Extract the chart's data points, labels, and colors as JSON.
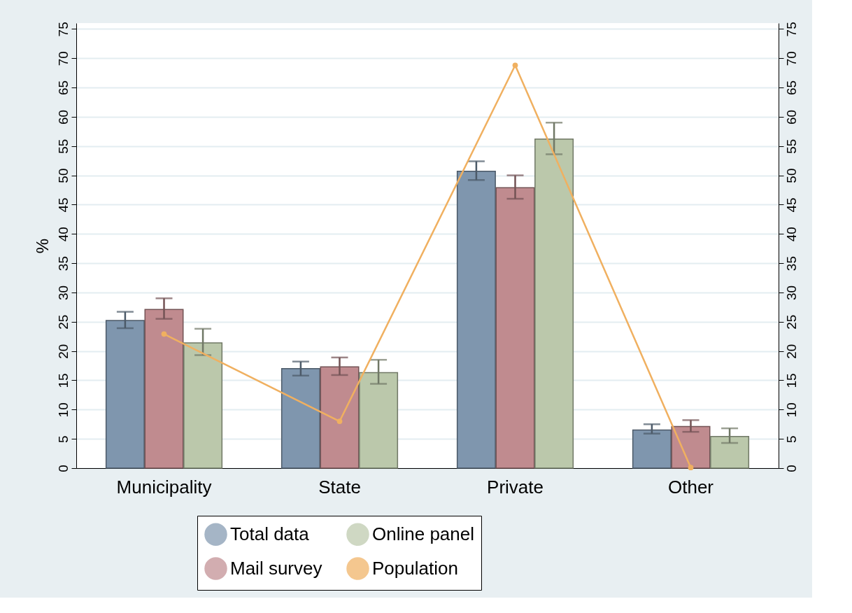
{
  "chart_data": {
    "type": "bar",
    "ylabel": "%",
    "categories": [
      "Municipality",
      "State",
      "Private",
      "Other"
    ],
    "series": [
      {
        "name": "Total data",
        "color": "#7f96ae",
        "values": [
          25.2,
          17.0,
          50.7,
          6.5
        ],
        "errors": [
          [
            23.9,
            26.7
          ],
          [
            15.8,
            18.2
          ],
          [
            49.2,
            52.4
          ],
          [
            5.9,
            7.5
          ]
        ]
      },
      {
        "name": "Mail survey",
        "color": "#c08b8f",
        "values": [
          27.1,
          17.3,
          47.9,
          7.1
        ],
        "errors": [
          [
            25.5,
            29.0
          ],
          [
            15.9,
            18.9
          ],
          [
            46.0,
            50.0
          ],
          [
            6.2,
            8.2
          ]
        ]
      },
      {
        "name": "Online panel",
        "color": "#bbc8ab",
        "values": [
          21.4,
          16.3,
          56.2,
          5.4
        ],
        "errors": [
          [
            19.3,
            23.8
          ],
          [
            14.4,
            18.5
          ],
          [
            53.6,
            59.0
          ],
          [
            4.3,
            6.8
          ]
        ]
      },
      {
        "name": "Population",
        "type": "line",
        "color": "#f0b060",
        "marker": "circle",
        "values": [
          22.9,
          8.0,
          68.8,
          0.1
        ]
      }
    ],
    "ylim": [
      0,
      76
    ],
    "yticks": [
      0,
      5,
      10,
      15,
      20,
      25,
      30,
      35,
      40,
      45,
      50,
      55,
      60,
      65,
      70,
      75
    ],
    "y2lim": [
      0,
      76
    ],
    "y2ticks": [
      0,
      5,
      10,
      15,
      20,
      25,
      30,
      35,
      40,
      45,
      50,
      55,
      60,
      65,
      70,
      75
    ],
    "grid": "y",
    "legend": "bottom"
  }
}
